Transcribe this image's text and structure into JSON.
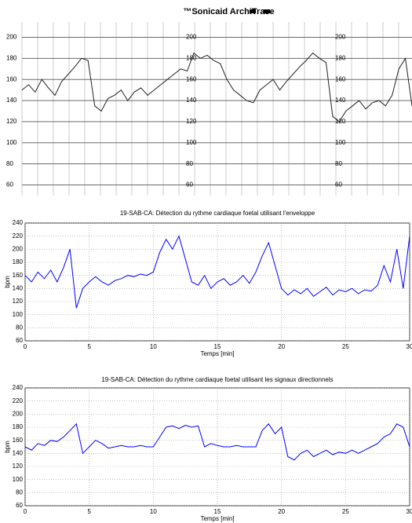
{
  "chart_data": [
    {
      "type": "line",
      "title": "™Sonicaid ArchiTrace",
      "color": "#222222",
      "values": [
        150,
        155,
        148,
        160,
        152,
        145,
        158,
        165,
        172,
        180,
        178,
        135,
        130,
        142,
        145,
        150,
        140,
        148,
        152,
        145,
        150,
        155,
        160,
        165,
        170,
        168,
        185,
        180,
        183,
        178,
        175,
        160,
        150,
        145,
        140,
        138,
        150,
        155,
        160,
        150,
        158,
        165,
        172,
        178,
        185,
        180,
        176,
        125,
        120,
        130,
        135,
        140,
        132,
        138,
        140,
        135,
        145,
        170,
        180,
        135
      ],
      "ylim": [
        50,
        210
      ],
      "yticks": [
        60,
        80,
        100,
        120,
        140,
        160,
        180,
        200
      ],
      "grid": true
    },
    {
      "type": "line",
      "title": "19-SAB-CA: Détection du rythme cardiaque foetal utilisant l'enveloppe",
      "x_label": "Temps [min]",
      "y_label": "bpm",
      "color": "#0000ff",
      "x": [
        0,
        0.5,
        1,
        1.5,
        2,
        2.5,
        3,
        3.5,
        4,
        4.5,
        5,
        5.5,
        6,
        6.5,
        7,
        7.5,
        8,
        8.5,
        9,
        9.5,
        10,
        10.5,
        11,
        11.5,
        12,
        12.5,
        13,
        13.5,
        14,
        14.5,
        15,
        15.5,
        16,
        16.5,
        17,
        17.5,
        18,
        18.5,
        19,
        19.5,
        20,
        20.5,
        21,
        21.5,
        22,
        22.5,
        23,
        23.5,
        24,
        24.5,
        25,
        25.5,
        26,
        26.5,
        27,
        27.5,
        28,
        28.5,
        29,
        29.5,
        30
      ],
      "values": [
        160,
        150,
        165,
        155,
        168,
        150,
        172,
        200,
        110,
        140,
        150,
        158,
        150,
        145,
        152,
        155,
        160,
        158,
        162,
        160,
        165,
        195,
        215,
        200,
        220,
        185,
        150,
        145,
        160,
        140,
        150,
        155,
        145,
        150,
        160,
        148,
        165,
        190,
        210,
        175,
        140,
        130,
        138,
        132,
        140,
        128,
        135,
        142,
        130,
        138,
        135,
        140,
        132,
        138,
        136,
        145,
        175,
        150,
        200,
        140,
        220
      ],
      "xlim": [
        0,
        30
      ],
      "ylim": [
        60,
        240
      ],
      "xticks": [
        0,
        5,
        10,
        15,
        20,
        25,
        30
      ],
      "yticks": [
        60,
        80,
        100,
        120,
        140,
        160,
        180,
        200,
        220,
        240
      ],
      "grid": true
    },
    {
      "type": "line",
      "title": "19-SAB-CA: Détection du rythme cardiaque foetal utilisant les signaux directionnels",
      "x_label": "Temps [min]",
      "y_label": "bpm",
      "color": "#0000ff",
      "x": [
        0,
        0.5,
        1,
        1.5,
        2,
        2.5,
        3,
        3.5,
        4,
        4.5,
        5,
        5.5,
        6,
        6.5,
        7,
        7.5,
        8,
        8.5,
        9,
        9.5,
        10,
        10.5,
        11,
        11.5,
        12,
        12.5,
        13,
        13.5,
        14,
        14.5,
        15,
        15.5,
        16,
        16.5,
        17,
        17.5,
        18,
        18.5,
        19,
        19.5,
        20,
        20.5,
        21,
        21.5,
        22,
        22.5,
        23,
        23.5,
        24,
        24.5,
        25,
        25.5,
        26,
        26.5,
        27,
        27.5,
        28,
        28.5,
        29,
        29.5,
        30
      ],
      "values": [
        150,
        145,
        155,
        152,
        160,
        158,
        165,
        175,
        185,
        140,
        150,
        160,
        155,
        148,
        150,
        152,
        150,
        150,
        152,
        150,
        150,
        165,
        180,
        182,
        178,
        183,
        180,
        182,
        150,
        155,
        152,
        150,
        150,
        152,
        150,
        150,
        150,
        175,
        185,
        170,
        180,
        135,
        130,
        140,
        145,
        135,
        140,
        145,
        138,
        142,
        140,
        145,
        140,
        145,
        150,
        155,
        165,
        170,
        185,
        180,
        150
      ],
      "xlim": [
        0,
        30
      ],
      "ylim": [
        60,
        240
      ],
      "xticks": [
        0,
        5,
        10,
        15,
        20,
        25,
        30
      ],
      "yticks": [
        60,
        80,
        100,
        120,
        140,
        160,
        180,
        200,
        220,
        240
      ],
      "grid": true
    }
  ]
}
